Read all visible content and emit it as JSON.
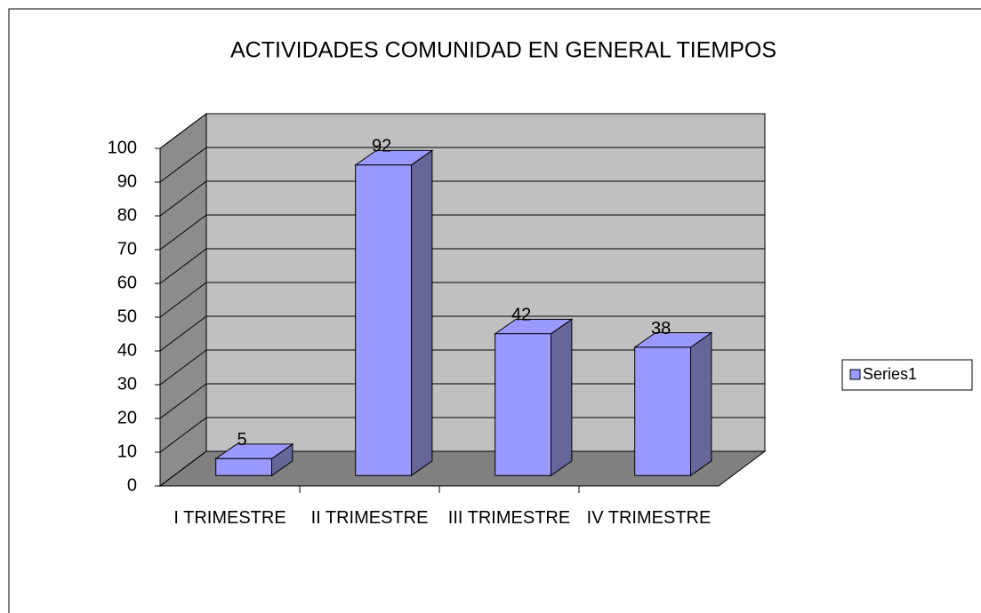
{
  "chart_data": {
    "type": "bar3d",
    "title": "ACTIVIDADES COMUNIDAD EN GENERAL TIEMPOS",
    "categories": [
      "I TRIMESTRE",
      "II TRIMESTRE",
      "III TRIMESTRE",
      "IV TRIMESTRE"
    ],
    "series": [
      {
        "name": "Series1",
        "color": "#9999ff",
        "values": [
          5,
          92,
          42,
          38
        ]
      }
    ],
    "ylim": [
      0,
      100
    ],
    "yticks": [
      0,
      10,
      20,
      30,
      40,
      50,
      60,
      70,
      80,
      90,
      100
    ],
    "grid": true,
    "legend": "right"
  }
}
